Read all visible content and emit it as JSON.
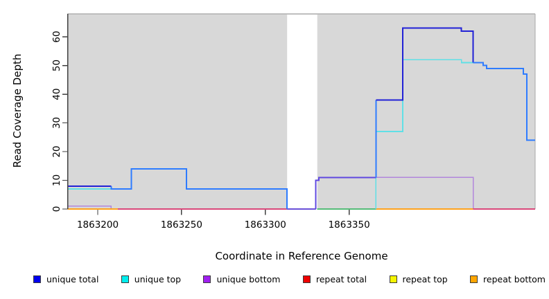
{
  "figure": {
    "xlabel": "Coordinate in Reference Genome",
    "ylabel": "Read Coverage Depth"
  },
  "chart_data": {
    "type": "line",
    "subtype": "step-coverage",
    "title": "",
    "xlabel": "Coordinate in Reference Genome",
    "ylabel": "Read Coverage Depth",
    "xlim": [
      1863182,
      1863461
    ],
    "ylim": [
      0,
      68
    ],
    "background": "#d8d8d8",
    "grid": false,
    "legend_position": "bottom",
    "x_ticks": [
      {
        "value": 1863200,
        "label": "1863200"
      },
      {
        "value": 1863250,
        "label": "1863250"
      },
      {
        "value": 1863300,
        "label": "1863300"
      },
      {
        "value": 1863350,
        "label": "1863350"
      }
    ],
    "y_ticks": [
      {
        "value": 0,
        "label": "0"
      },
      {
        "value": 10,
        "label": "10"
      },
      {
        "value": 20,
        "label": "20"
      },
      {
        "value": 30,
        "label": "30"
      },
      {
        "value": 40,
        "label": "40"
      },
      {
        "value": 50,
        "label": "50"
      },
      {
        "value": 60,
        "label": "60"
      }
    ],
    "masked_region": {
      "start": 1863313,
      "end": 1863331,
      "color": "#ffffff"
    },
    "series": [
      {
        "name": "unique total",
        "color": "#0000ee",
        "step_points": [
          [
            1863182,
            8
          ],
          [
            1863208,
            7
          ],
          [
            1863220,
            14
          ],
          [
            1863253,
            7
          ],
          [
            1863313,
            0
          ],
          [
            1863330,
            10
          ],
          [
            1863332,
            11
          ],
          [
            1863366,
            38
          ],
          [
            1863382,
            63
          ],
          [
            1863417,
            62
          ],
          [
            1863424,
            51
          ],
          [
            1863430,
            50
          ],
          [
            1863432,
            49
          ],
          [
            1863454,
            47
          ],
          [
            1863456,
            24
          ],
          [
            1863461,
            24
          ]
        ]
      },
      {
        "name": "unique top",
        "color": "#00eeee",
        "step_points": [
          [
            1863182,
            7
          ],
          [
            1863220,
            14
          ],
          [
            1863253,
            7
          ],
          [
            1863313,
            0
          ],
          [
            1863366,
            27
          ],
          [
            1863382,
            52
          ],
          [
            1863417,
            51
          ],
          [
            1863424,
            51
          ],
          [
            1863430,
            50
          ],
          [
            1863432,
            49
          ],
          [
            1863454,
            47
          ],
          [
            1863456,
            24
          ],
          [
            1863461,
            24
          ]
        ]
      },
      {
        "name": "unique bottom",
        "color": "#a020f0",
        "step_points": [
          [
            1863182,
            1
          ],
          [
            1863208,
            0
          ],
          [
            1863330,
            10
          ],
          [
            1863332,
            11
          ],
          [
            1863424,
            0
          ],
          [
            1863461,
            0
          ]
        ]
      },
      {
        "name": "repeat total",
        "color": "#ee0000",
        "step_points": [
          [
            1863182,
            0
          ],
          [
            1863461,
            0
          ]
        ]
      },
      {
        "name": "repeat top",
        "color": "#f5f500",
        "step_points": [
          [
            1863182,
            0
          ],
          [
            1863461,
            0
          ]
        ]
      },
      {
        "name": "repeat bottom",
        "color": "#ffa500",
        "step_points": [
          [
            1863182,
            0
          ],
          [
            1863461,
            0
          ]
        ]
      }
    ],
    "render_lines": [
      {
        "color": "#b286dc",
        "width": 1.6,
        "points": [
          [
            1863182,
            1
          ],
          [
            1863208,
            1
          ],
          [
            1863208,
            0
          ],
          [
            1863330,
            0
          ],
          [
            1863330,
            10
          ],
          [
            1863332,
            10
          ],
          [
            1863332,
            11
          ],
          [
            1863424,
            11
          ],
          [
            1863424,
            0
          ],
          [
            1863461,
            0
          ]
        ]
      },
      {
        "color": "#ffa21e",
        "width": 2.0,
        "points": [
          [
            1863182,
            0
          ],
          [
            1863212,
            0
          ]
        ]
      },
      {
        "color": "#d9487a",
        "width": 1.8,
        "points": [
          [
            1863212,
            0
          ],
          [
            1863313,
            0
          ]
        ]
      },
      {
        "color": "#6a4fd8",
        "width": 1.8,
        "points": [
          [
            1863313,
            0
          ],
          [
            1863330,
            0
          ]
        ]
      },
      {
        "color": "#55bb77",
        "width": 1.6,
        "points": [
          [
            1863331,
            0
          ],
          [
            1863366,
            0
          ]
        ]
      },
      {
        "color": "#ffa21e",
        "width": 2.0,
        "points": [
          [
            1863366,
            0
          ],
          [
            1863424,
            0
          ]
        ]
      },
      {
        "color": "#d9487a",
        "width": 1.8,
        "points": [
          [
            1863424,
            0
          ],
          [
            1863461,
            0
          ]
        ]
      },
      {
        "color": "#5fe0e6",
        "width": 1.6,
        "points": [
          [
            1863182,
            7
          ],
          [
            1863220,
            7
          ],
          [
            1863220,
            14
          ],
          [
            1863253,
            14
          ],
          [
            1863253,
            7
          ],
          [
            1863313,
            7
          ],
          [
            1863313,
            0
          ]
        ]
      },
      {
        "color": "#5fe0e6",
        "width": 1.6,
        "points": [
          [
            1863366,
            0
          ],
          [
            1863366,
            27
          ],
          [
            1863382,
            27
          ],
          [
            1863382,
            52
          ],
          [
            1863417,
            52
          ],
          [
            1863417,
            51
          ],
          [
            1863424,
            51
          ],
          [
            1863430,
            51
          ],
          [
            1863430,
            50
          ],
          [
            1863432,
            50
          ],
          [
            1863432,
            49
          ],
          [
            1863454,
            49
          ],
          [
            1863454,
            47
          ],
          [
            1863456,
            47
          ],
          [
            1863456,
            24
          ],
          [
            1863461,
            24
          ]
        ]
      },
      {
        "color": "#2121d6",
        "width": 2.0,
        "points": [
          [
            1863182,
            8
          ],
          [
            1863208,
            8
          ]
        ]
      },
      {
        "color": "#2e7cff",
        "width": 2.0,
        "points": [
          [
            1863208,
            8
          ],
          [
            1863208,
            7
          ],
          [
            1863220,
            7
          ],
          [
            1863220,
            14
          ],
          [
            1863253,
            14
          ],
          [
            1863253,
            7
          ],
          [
            1863313,
            7
          ],
          [
            1863313,
            0
          ]
        ]
      },
      {
        "color": "#5f48e0",
        "width": 2.0,
        "points": [
          [
            1863330,
            0
          ],
          [
            1863330,
            10
          ],
          [
            1863332,
            10
          ],
          [
            1863332,
            11
          ],
          [
            1863366,
            11
          ]
        ]
      },
      {
        "color": "#2e7cff",
        "width": 2.0,
        "points": [
          [
            1863366,
            11
          ],
          [
            1863366,
            38
          ]
        ]
      },
      {
        "color": "#2121d6",
        "width": 2.0,
        "points": [
          [
            1863366,
            38
          ],
          [
            1863382,
            38
          ],
          [
            1863382,
            63
          ],
          [
            1863417,
            63
          ],
          [
            1863417,
            62
          ],
          [
            1863424,
            62
          ],
          [
            1863424,
            51
          ]
        ]
      },
      {
        "color": "#2e7cff",
        "width": 2.0,
        "points": [
          [
            1863424,
            51
          ],
          [
            1863430,
            51
          ],
          [
            1863430,
            50
          ],
          [
            1863432,
            50
          ],
          [
            1863432,
            49
          ],
          [
            1863454,
            49
          ],
          [
            1863454,
            47
          ],
          [
            1863456,
            47
          ],
          [
            1863456,
            24
          ],
          [
            1863461,
            24
          ]
        ]
      }
    ]
  },
  "legend": {
    "items": [
      {
        "label": "unique total",
        "color": "#0000ee"
      },
      {
        "label": "unique top",
        "color": "#00eeee"
      },
      {
        "label": "unique bottom",
        "color": "#a020f0"
      },
      {
        "label": "repeat total",
        "color": "#ee0000"
      },
      {
        "label": "repeat top",
        "color": "#f5f500"
      },
      {
        "label": "repeat bottom",
        "color": "#ffa500"
      }
    ]
  }
}
